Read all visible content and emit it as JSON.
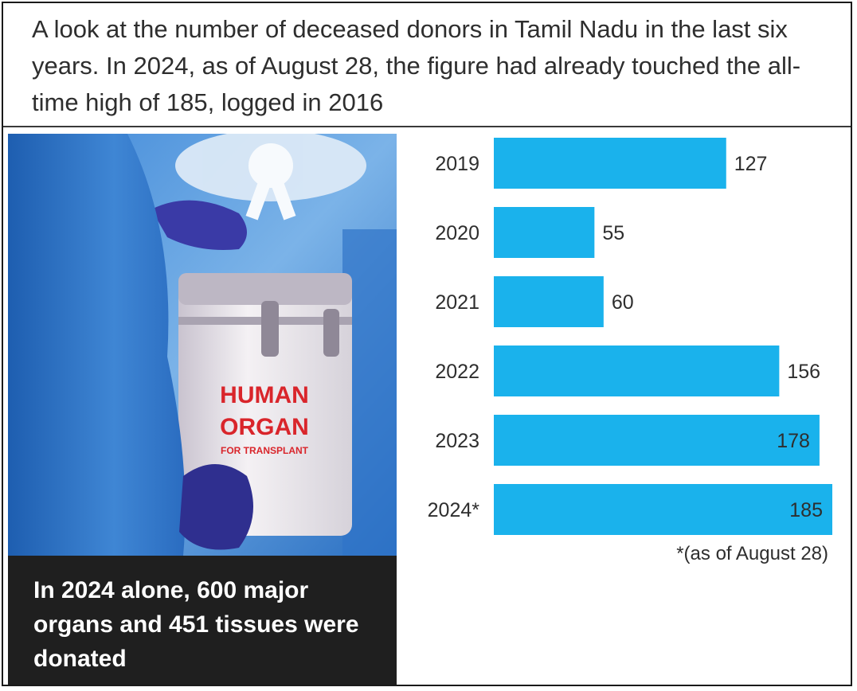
{
  "headline": "A look at the number of deceased donors in Tamil Nadu in the last six years. In 2024, as of August 28, the figure had already touched the all-time high of 185, logged in 2016",
  "photo": {
    "box_line1": "HUMAN",
    "box_line2": "ORGAN",
    "box_line3": "FOR TRANSPLANT"
  },
  "caption": "In 2024 alone, 600 major organs and 451 tissues were donated",
  "footnote": "*(as of August 28)",
  "colors": {
    "bar": "#1ab2ec",
    "caption_bg": "#1f1f1f",
    "text": "#2e2e2e"
  },
  "chart_data": {
    "type": "bar",
    "orientation": "horizontal",
    "categories": [
      "2019",
      "2020",
      "2021",
      "2022",
      "2023",
      "2024*"
    ],
    "values": [
      127,
      55,
      60,
      156,
      178,
      185
    ],
    "value_labels": [
      "127",
      "55",
      "60",
      "156",
      "178",
      "185"
    ],
    "title": "",
    "xlabel": "",
    "ylabel": "",
    "xlim": [
      0,
      185
    ],
    "grid": false,
    "legend": "none"
  }
}
